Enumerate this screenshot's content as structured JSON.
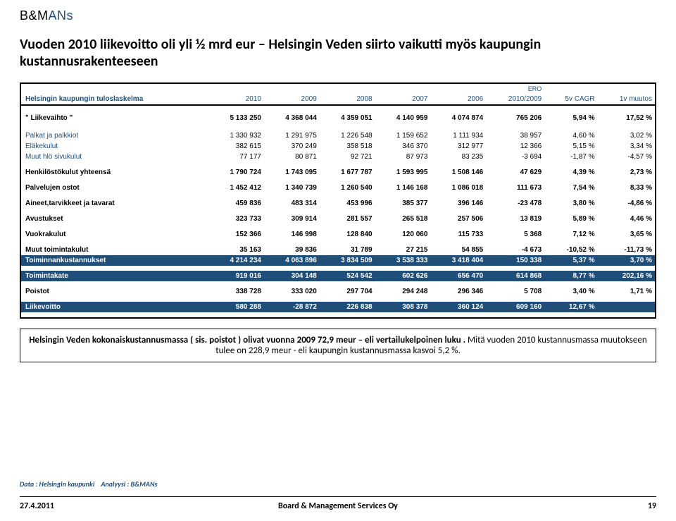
{
  "logo": {
    "bm": "B&M",
    "ans": "ANs"
  },
  "title": "Vuoden 2010 liikevoitto oli yli ½ mrd eur – Helsingin Veden siirto vaikutti myös kaupungin kustannusrakenteeseen",
  "table": {
    "header_intro": "Helsingin kaupungin tuloslaskelma",
    "ero_label": "ERO",
    "cols": [
      "2010",
      "2009",
      "2008",
      "2007",
      "2006",
      "2010/2009",
      "5v CAGR",
      "1v muutos"
    ],
    "rows": [
      {
        "type": "data",
        "bold": true,
        "label": "\" Liikevaihto \"",
        "vals": [
          "5 133 250",
          "4 368 044",
          "4 359 051",
          "4 140 959",
          "4 074 874",
          "765 206",
          "5,94 %",
          "17,52 %"
        ]
      },
      {
        "type": "spacer"
      },
      {
        "type": "data",
        "blue": true,
        "label": "Palkat ja palkkiot",
        "vals": [
          "1 330 932",
          "1 291 975",
          "1 226 548",
          "1 159 652",
          "1 111 934",
          "38 957",
          "4,60 %",
          "3,02 %"
        ]
      },
      {
        "type": "data",
        "blue": true,
        "label": "Eläkekulut",
        "vals": [
          "382 615",
          "370 249",
          "358 518",
          "346 370",
          "312 977",
          "12 366",
          "5,15 %",
          "3,34 %"
        ]
      },
      {
        "type": "data",
        "blue": true,
        "label": "Muut hlö sivukulut",
        "vals": [
          "77 177",
          "80 871",
          "92 721",
          "87 973",
          "83 235",
          "-3 694",
          "-1,87 %",
          "-4,57 %"
        ]
      },
      {
        "type": "spacer-sm"
      },
      {
        "type": "data",
        "bold": true,
        "label": "Henkilöstökulut yhteensä",
        "vals": [
          "1 790 724",
          "1 743 095",
          "1 677 787",
          "1 593 995",
          "1 508 146",
          "47 629",
          "4,39 %",
          "2,73 %"
        ]
      },
      {
        "type": "spacer-sm"
      },
      {
        "type": "data",
        "bold": true,
        "label": "Palvelujen ostot",
        "vals": [
          "1 452 412",
          "1 340 739",
          "1 260 540",
          "1 146 168",
          "1 086 018",
          "111 673",
          "7,54 %",
          "8,33 %"
        ]
      },
      {
        "type": "spacer-sm"
      },
      {
        "type": "data",
        "bold": true,
        "label": "Aineet,tarvikkeet ja tavarat",
        "vals": [
          "459 836",
          "483 314",
          "453 996",
          "385 377",
          "396 146",
          "-23 478",
          "3,80 %",
          "-4,86 %"
        ]
      },
      {
        "type": "spacer-sm"
      },
      {
        "type": "data",
        "bold": true,
        "label": "Avustukset",
        "vals": [
          "323 733",
          "309 914",
          "281 557",
          "265 518",
          "257 506",
          "13 819",
          "5,89 %",
          "4,46 %"
        ]
      },
      {
        "type": "spacer-sm"
      },
      {
        "type": "data",
        "bold": true,
        "label": "Vuokrakulut",
        "vals": [
          "152 366",
          "146 998",
          "128 840",
          "120 060",
          "115 733",
          "5 368",
          "7,12 %",
          "3,65 %"
        ]
      },
      {
        "type": "spacer-sm"
      },
      {
        "type": "data",
        "bold": true,
        "label": "Muut toimintakulut",
        "vals": [
          "35 163",
          "39 836",
          "31 789",
          "27 215",
          "54 855",
          "-4 673",
          "-10,52 %",
          "-11,73 %"
        ]
      },
      {
        "type": "band",
        "label": "Toiminnankustannukset",
        "vals": [
          "4 214 234",
          "4 063 896",
          "3 834 509",
          "3 538 333",
          "3 418 404",
          "150 338",
          "5,37 %",
          "3,70 %"
        ]
      },
      {
        "type": "spacer-sm"
      },
      {
        "type": "band",
        "label": "Toimintakate",
        "vals": [
          "919 016",
          "304 148",
          "524 542",
          "602 626",
          "656 470",
          "614 868",
          "8,77 %",
          "202,16 %"
        ]
      },
      {
        "type": "spacer-sm"
      },
      {
        "type": "data",
        "bold": true,
        "label": "Poistot",
        "vals": [
          "338 728",
          "333 020",
          "297 704",
          "294 248",
          "296 346",
          "5 708",
          "3,40 %",
          "1,71 %"
        ]
      },
      {
        "type": "spacer-sm"
      },
      {
        "type": "band",
        "label": "Liikevoitto",
        "vals": [
          "580 288",
          "-28 872",
          "226 838",
          "308 378",
          "360 124",
          "609 160",
          "12,67 %",
          ""
        ]
      }
    ]
  },
  "note": {
    "part1": "Helsingin Veden kokonaiskustannusmassa ( sis. poistot ) olivat vuonna 2009 72,9 meur – eli vertailukelpoinen luku .",
    "part2": " Mitä vuoden 2010 kustannusmassa muutokseen tulee on 228,9 meur  - eli kaupungin kustannusmassa kasvoi 5,2 %."
  },
  "footer": {
    "data_label": "Data : Helsingin kaupunki",
    "analysis_label": "Analyysi : B&MANs",
    "date": "27.4.2011",
    "center": "Board & Management Services Oy",
    "page": "19"
  }
}
